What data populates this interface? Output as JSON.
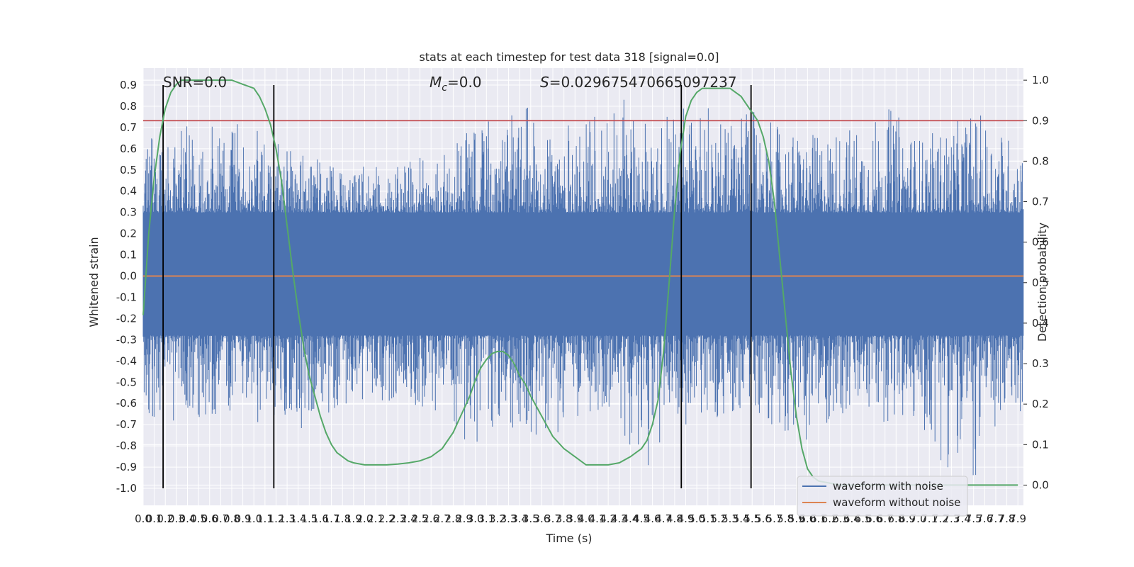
{
  "chart_data": {
    "type": "line",
    "title": "stats at each timestep for test data 318 [signal=0.0]",
    "xlabel": "Time (s)",
    "ylabel": "Whitened strain",
    "y2label": "Detection probability",
    "xlim": [
      0.0,
      7.95
    ],
    "ylim": [
      -1.08,
      0.98
    ],
    "y2lim": [
      -0.05,
      1.03
    ],
    "x_ticks": [
      0.0,
      0.1,
      0.2,
      0.3,
      0.4,
      0.5,
      0.6,
      0.7,
      0.8,
      0.9,
      1.0,
      1.1,
      1.2,
      1.3,
      1.4,
      1.5,
      1.6,
      1.7,
      1.8,
      1.9,
      2.0,
      2.1,
      2.2,
      2.3,
      2.4,
      2.5,
      2.6,
      2.7,
      2.8,
      2.9,
      3.0,
      3.1,
      3.2,
      3.3,
      3.4,
      3.5,
      3.6,
      3.7,
      3.8,
      3.9,
      4.0,
      4.1,
      4.2,
      4.3,
      4.4,
      4.5,
      4.6,
      4.7,
      4.8,
      4.9,
      5.0,
      5.1,
      5.2,
      5.3,
      5.4,
      5.5,
      5.6,
      5.7,
      5.8,
      5.9,
      6.0,
      6.1,
      6.2,
      6.3,
      6.4,
      6.5,
      6.6,
      6.7,
      6.8,
      6.9,
      7.0,
      7.1,
      7.2,
      7.3,
      7.4,
      7.5,
      7.6,
      7.7,
      7.8,
      7.9
    ],
    "y_ticks": [
      -1.0,
      -0.9,
      -0.8,
      -0.7,
      -0.6,
      -0.5,
      -0.4,
      -0.3,
      -0.2,
      -0.1,
      0.0,
      0.1,
      0.2,
      0.3,
      0.4,
      0.5,
      0.6,
      0.7,
      0.8,
      0.9
    ],
    "y2_ticks": [
      0.0,
      0.1,
      0.2,
      0.3,
      0.4,
      0.5,
      0.6,
      0.7,
      0.8,
      0.9,
      1.0
    ],
    "grid": true,
    "legend_position": "bottom-right",
    "annotations": {
      "snr": "SNR=0.0",
      "mc_symbol": "M",
      "mc_sub": "c",
      "mc_value": "=0.0",
      "s_symbol": "S",
      "s_value": "=0.029675470665097237"
    },
    "threshold": 0.9,
    "vertical_lines_x": [
      0.18,
      1.18,
      4.86,
      5.49
    ],
    "series": [
      {
        "name": "waveform with noise",
        "color": "#4c72b0",
        "envelope_x": [
          0.0,
          0.25,
          0.5,
          0.75,
          1.0,
          1.25,
          1.5,
          1.75,
          2.0,
          2.25,
          2.5,
          2.75,
          3.0,
          3.25,
          3.5,
          3.75,
          4.0,
          4.25,
          4.5,
          4.75,
          5.0,
          5.25,
          5.5,
          5.75,
          6.0,
          6.25,
          6.5,
          6.75,
          7.0,
          7.25,
          7.5,
          7.75,
          7.95
        ],
        "envelope_max": [
          0.62,
          0.72,
          0.7,
          0.72,
          0.72,
          0.62,
          0.56,
          0.54,
          0.55,
          0.52,
          0.56,
          0.58,
          0.72,
          0.74,
          0.8,
          0.72,
          0.72,
          0.9,
          0.72,
          0.82,
          0.85,
          0.75,
          0.78,
          0.7,
          0.66,
          0.7,
          0.72,
          0.8,
          0.66,
          0.7,
          0.78,
          0.7,
          0.6
        ],
        "envelope_min": [
          -0.62,
          -0.74,
          -0.7,
          -0.68,
          -0.7,
          -0.64,
          -0.78,
          -0.62,
          -0.6,
          -0.62,
          -0.64,
          -0.66,
          -0.84,
          -0.7,
          -0.76,
          -0.74,
          -0.64,
          -0.62,
          -1.0,
          -0.68,
          -0.72,
          -0.68,
          -0.66,
          -0.72,
          -0.78,
          -0.68,
          -0.66,
          -0.7,
          -0.72,
          -0.9,
          -0.98,
          -0.72,
          -0.64
        ]
      },
      {
        "name": "waveform without noise",
        "color": "#dd8452",
        "x": [
          0.0,
          7.95
        ],
        "y": [
          0.0,
          0.0
        ]
      },
      {
        "name": "detection probability",
        "color": "#55a868",
        "axis": "right",
        "x": [
          0.0,
          0.05,
          0.1,
          0.15,
          0.2,
          0.25,
          0.3,
          0.35,
          0.4,
          0.5,
          0.6,
          0.7,
          0.8,
          0.9,
          1.0,
          1.05,
          1.1,
          1.15,
          1.2,
          1.25,
          1.3,
          1.35,
          1.4,
          1.45,
          1.5,
          1.55,
          1.6,
          1.65,
          1.7,
          1.75,
          1.8,
          1.85,
          1.9,
          2.0,
          2.1,
          2.2,
          2.3,
          2.4,
          2.5,
          2.6,
          2.7,
          2.8,
          2.85,
          2.9,
          2.95,
          3.0,
          3.05,
          3.1,
          3.15,
          3.2,
          3.25,
          3.3,
          3.35,
          3.4,
          3.45,
          3.5,
          3.6,
          3.7,
          3.8,
          3.9,
          4.0,
          4.1,
          4.2,
          4.3,
          4.4,
          4.5,
          4.55,
          4.6,
          4.65,
          4.7,
          4.75,
          4.8,
          4.85,
          4.9,
          4.95,
          5.0,
          5.05,
          5.1,
          5.2,
          5.3,
          5.35,
          5.4,
          5.45,
          5.5,
          5.55,
          5.6,
          5.65,
          5.7,
          5.75,
          5.8,
          5.85,
          5.9,
          5.95,
          6.0,
          6.05,
          6.1,
          6.2,
          6.3,
          7.9
        ],
        "y": [
          0.42,
          0.62,
          0.76,
          0.86,
          0.93,
          0.97,
          0.99,
          1.0,
          1.0,
          1.0,
          1.0,
          1.0,
          1.0,
          0.99,
          0.98,
          0.96,
          0.93,
          0.89,
          0.83,
          0.75,
          0.64,
          0.53,
          0.43,
          0.34,
          0.27,
          0.22,
          0.17,
          0.13,
          0.1,
          0.08,
          0.07,
          0.06,
          0.055,
          0.05,
          0.05,
          0.05,
          0.052,
          0.055,
          0.06,
          0.07,
          0.09,
          0.13,
          0.16,
          0.19,
          0.22,
          0.26,
          0.29,
          0.31,
          0.325,
          0.33,
          0.33,
          0.32,
          0.3,
          0.27,
          0.25,
          0.22,
          0.17,
          0.12,
          0.09,
          0.07,
          0.05,
          0.05,
          0.05,
          0.055,
          0.07,
          0.09,
          0.11,
          0.15,
          0.21,
          0.33,
          0.5,
          0.68,
          0.82,
          0.91,
          0.95,
          0.97,
          0.98,
          0.98,
          0.98,
          0.98,
          0.97,
          0.96,
          0.94,
          0.92,
          0.9,
          0.86,
          0.8,
          0.7,
          0.56,
          0.42,
          0.28,
          0.17,
          0.09,
          0.04,
          0.02,
          0.01,
          0.005,
          0.0,
          0.0
        ]
      }
    ]
  }
}
